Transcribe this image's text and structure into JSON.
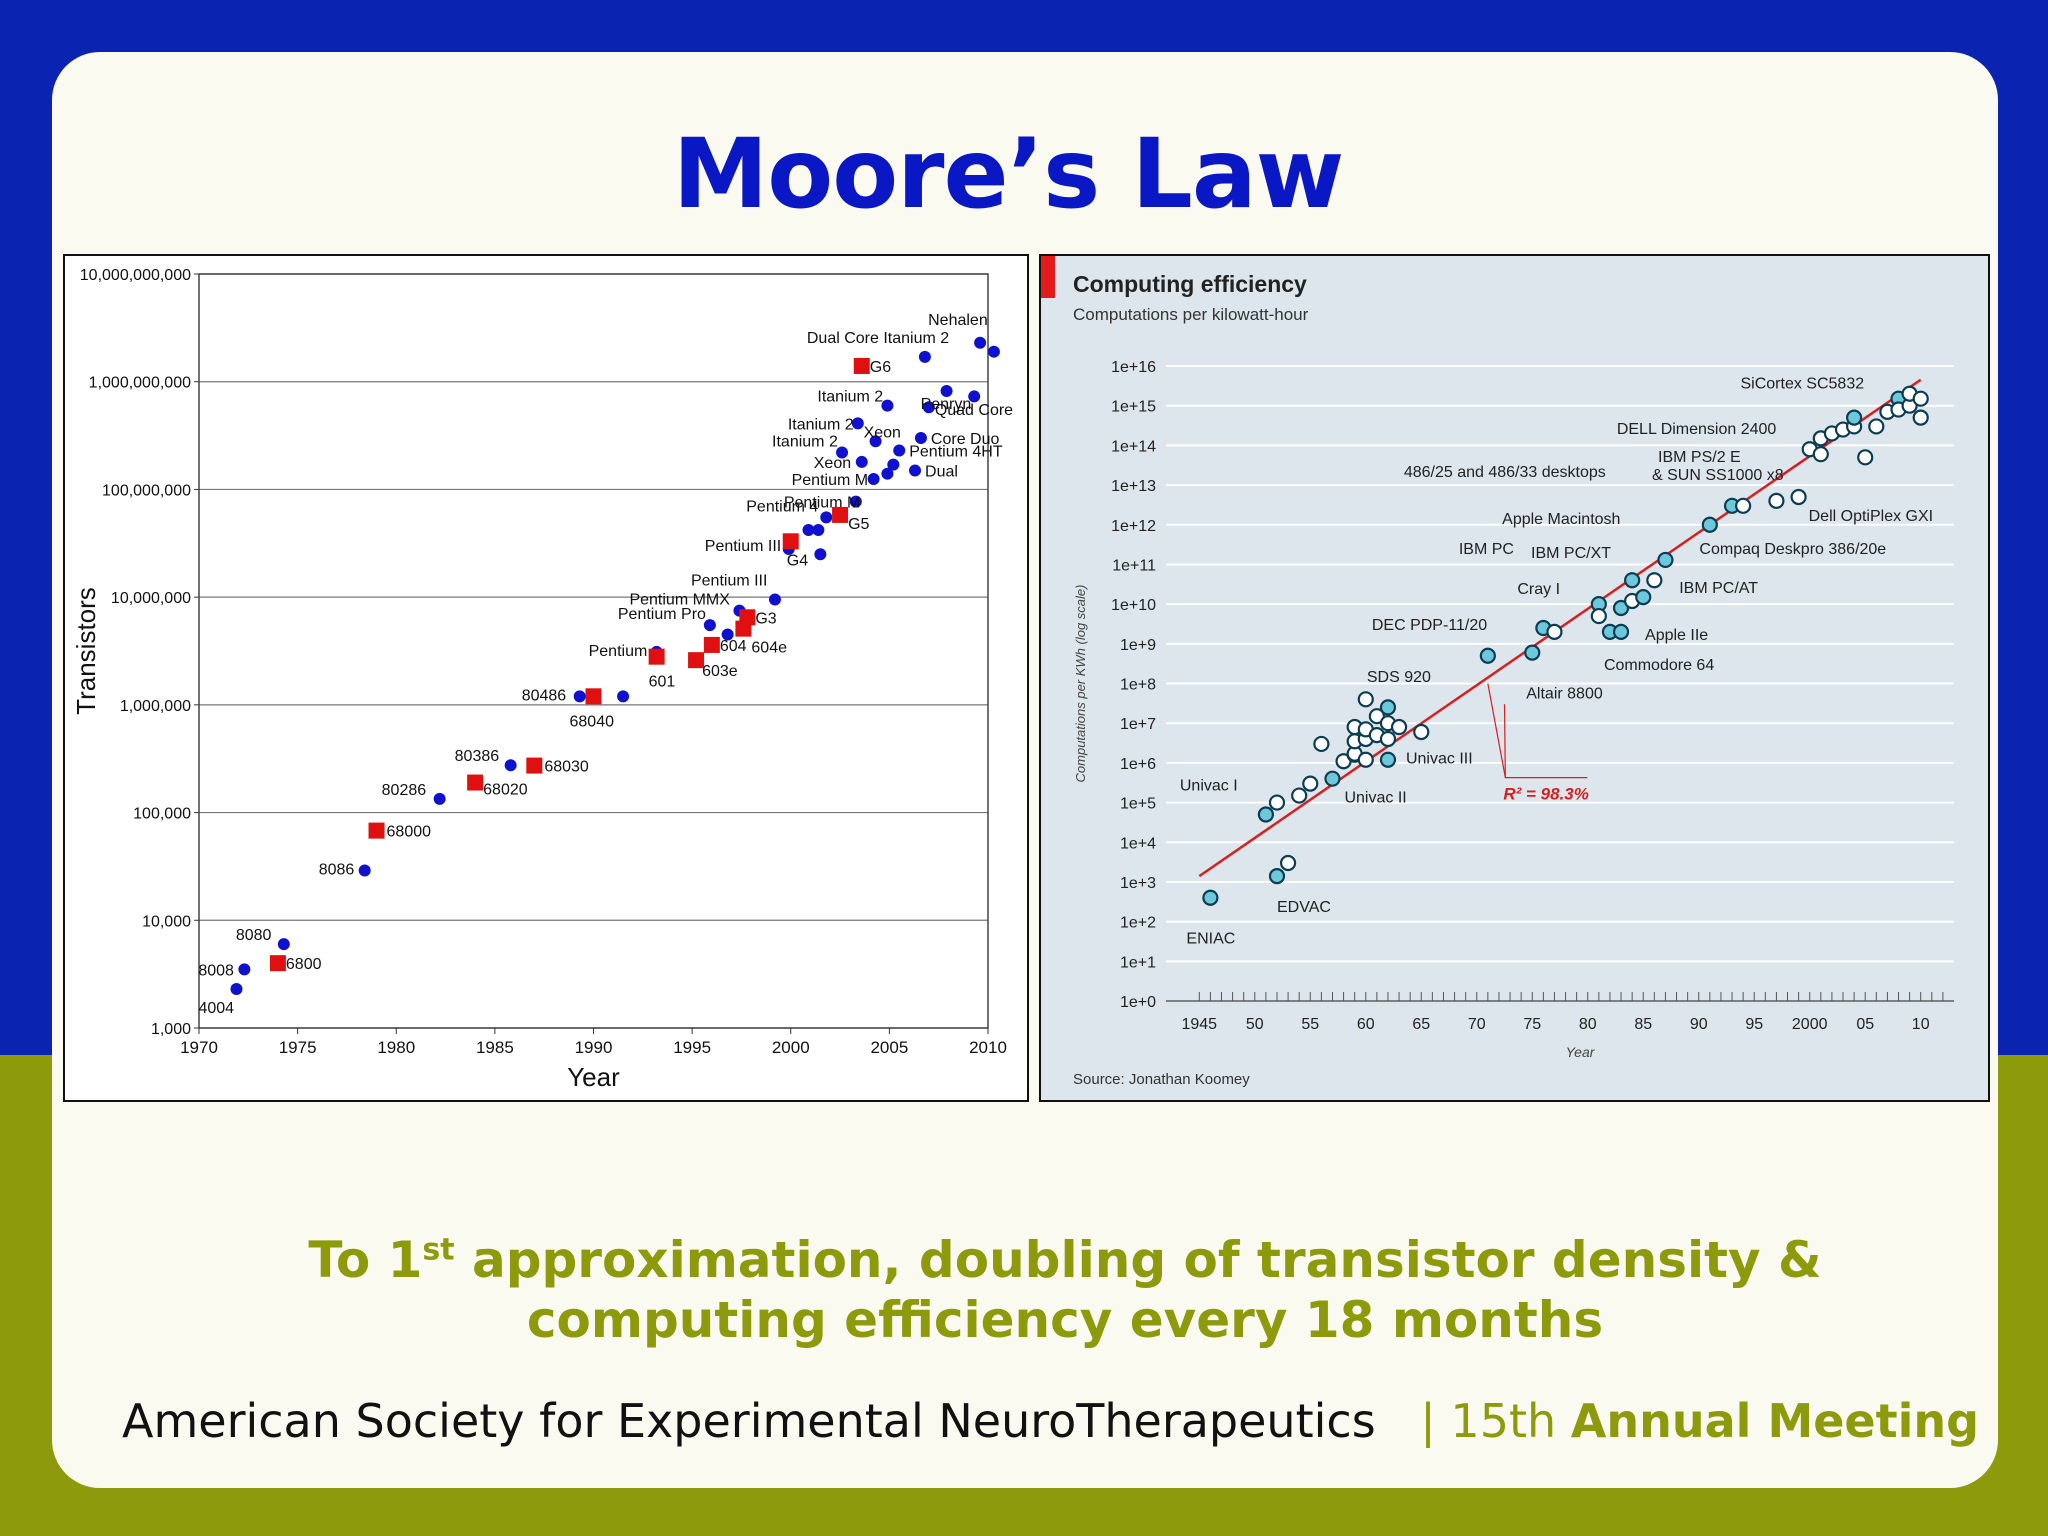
{
  "slide": {
    "title": "Moore’s Law",
    "subtitle_part1": "To 1",
    "subtitle_sup": "st",
    "subtitle_part2": " approximation, doubling of transistor density &",
    "subtitle_line2": "computing efficiency every 18 months",
    "footer_org": "American Society for Experimental NeuroTherapeutics",
    "footer_sep": "|",
    "footer_edition": "15th",
    "footer_meeting": "Annual Meeting"
  },
  "colors": {
    "brand_blue": "#0a17c4",
    "band_blue": "#0a23b0",
    "band_olive": "#8c9a0c",
    "intel_blue": "#1010d0",
    "motorola_red": "#e01010",
    "fit_line": "#d81e1e",
    "efficiency_point": "#6ec8dc"
  },
  "chart_data": [
    {
      "type": "scatter",
      "xlabel": "Year",
      "ylabel": "Transistors",
      "scale_y": "log",
      "xlim": [
        1970,
        2010
      ],
      "ylim": [
        1000,
        10000000000
      ],
      "x_ticks": [
        "1970",
        "1975",
        "1980",
        "1985",
        "1990",
        "1995",
        "2000",
        "2005",
        "2010"
      ],
      "y_ticks": [
        "1,000",
        "10,000",
        "100,000",
        "1,000,000",
        "10,000,000",
        "100,000,000",
        "1,000,000,000",
        "10,000,000,000"
      ],
      "grid": "horizontal",
      "series": [
        {
          "marker": "circle",
          "color": "#1010d0",
          "points": [
            {
              "x": 1971.9,
              "y": 2300,
              "label": "4004"
            },
            {
              "x": 1972.3,
              "y": 3500,
              "label": "8008"
            },
            {
              "x": 1974.3,
              "y": 6000,
              "label": "8080"
            },
            {
              "x": 1978.4,
              "y": 29000,
              "label": "8086"
            },
            {
              "x": 1982.2,
              "y": 134000,
              "label": "80286"
            },
            {
              "x": 1985.8,
              "y": 275000,
              "label": "80386"
            },
            {
              "x": 1989.3,
              "y": 1200000,
              "label": "80486"
            },
            {
              "x": 1991.5,
              "y": 1200000,
              "label": ""
            },
            {
              "x": 1993.2,
              "y": 3100000,
              "label": "Pentium"
            },
            {
              "x": 1995.9,
              "y": 5500000,
              "label": "Pentium Pro"
            },
            {
              "x": 1996.8,
              "y": 4500000,
              "label": ""
            },
            {
              "x": 1997.4,
              "y": 7500000,
              "label": "Pentium MMX"
            },
            {
              "x": 1999.2,
              "y": 9500000,
              "label": "Pentium III"
            },
            {
              "x": 1999.9,
              "y": 28000000,
              "label": "Pentium III"
            },
            {
              "x": 2000.9,
              "y": 42000000,
              "label": ""
            },
            {
              "x": 2001.4,
              "y": 42000000,
              "label": ""
            },
            {
              "x": 2001.5,
              "y": 25000000,
              "label": ""
            },
            {
              "x": 2001.8,
              "y": 55000000,
              "label": "Pentium 4"
            },
            {
              "x": 2002.6,
              "y": 220000000,
              "label": "Itanium 2"
            },
            {
              "x": 2003.4,
              "y": 410000000,
              "label": "Itanium 2"
            },
            {
              "x": 2003.6,
              "y": 180000000,
              "label": "Xeon"
            },
            {
              "x": 2003.3,
              "y": 77000000,
              "label": "Pentium M"
            },
            {
              "x": 2004.2,
              "y": 125000000,
              "label": "Pentium M"
            },
            {
              "x": 2004.3,
              "y": 280000000,
              "label": "Xeon"
            },
            {
              "x": 2004.9,
              "y": 600000000,
              "label": "Itanium 2"
            },
            {
              "x": 2004.9,
              "y": 140000000,
              "label": ""
            },
            {
              "x": 2005.2,
              "y": 170000000,
              "label": ""
            },
            {
              "x": 2005.5,
              "y": 230000000,
              "label": "Pentium 4HT"
            },
            {
              "x": 2006.3,
              "y": 150000000,
              "label": "Dual"
            },
            {
              "x": 2006.6,
              "y": 300000000,
              "label": "Core Duo"
            },
            {
              "x": 2006.8,
              "y": 1700000000,
              "label": "Dual Core Itanium 2"
            },
            {
              "x": 2007.0,
              "y": 580000000,
              "label": "Quad Core"
            },
            {
              "x": 2007.9,
              "y": 820000000,
              "label": "Penryn"
            },
            {
              "x": 2009.3,
              "y": 730000000,
              "label": ""
            },
            {
              "x": 2009.6,
              "y": 2300000000,
              "label": "Nehalen"
            },
            {
              "x": 2010.3,
              "y": 1900000000,
              "label": ""
            }
          ]
        },
        {
          "marker": "square",
          "color": "#e01010",
          "points": [
            {
              "x": 1974.0,
              "y": 4000,
              "label": "6800"
            },
            {
              "x": 1979.0,
              "y": 68000,
              "label": "68000"
            },
            {
              "x": 1984.0,
              "y": 190000,
              "label": "68020"
            },
            {
              "x": 1987.0,
              "y": 273000,
              "label": "68030"
            },
            {
              "x": 1990.0,
              "y": 1200000,
              "label": "68040"
            },
            {
              "x": 1993.2,
              "y": 2800000,
              "label": "601"
            },
            {
              "x": 1995.2,
              "y": 2600000,
              "label": "603e"
            },
            {
              "x": 1996.0,
              "y": 3600000,
              "label": "604"
            },
            {
              "x": 1997.6,
              "y": 5100000,
              "label": "604e"
            },
            {
              "x": 1997.8,
              "y": 6500000,
              "label": "G3"
            },
            {
              "x": 2000.0,
              "y": 33000000,
              "label": "G4"
            },
            {
              "x": 2002.5,
              "y": 58000000,
              "label": "G5"
            },
            {
              "x": 2003.6,
              "y": 1400000000,
              "label": "G6"
            }
          ]
        }
      ]
    },
    {
      "type": "scatter",
      "title": "Computing efficiency",
      "subtitle": "Computations per kilowatt-hour",
      "xlabel": "Year",
      "ylabel": "Computations per KWh (log scale)",
      "scale_y": "log",
      "xlim": [
        1942,
        2013
      ],
      "ylim": [
        1,
        1e+16
      ],
      "x_ticks": [
        "1945",
        "50",
        "55",
        "60",
        "65",
        "70",
        "75",
        "80",
        "85",
        "90",
        "95",
        "2000",
        "05",
        "10"
      ],
      "y_ticks": [
        "1e+0",
        "1e+1",
        "1e+2",
        "1e+3",
        "1e+4",
        "1e+5",
        "1e+6",
        "1e+7",
        "1e+8",
        "1e+9",
        "1e+10",
        "1e+11",
        "1e+12",
        "1e+13",
        "1e+14",
        "1e+15",
        "1e+16"
      ],
      "grid": "horizontal",
      "source": "Source: Jonathan Koomey",
      "fit": {
        "x": [
          1945,
          2010
        ],
        "y": [
          1400.0,
          4500000000000000.0
        ],
        "label": "R² = 98.3%"
      },
      "points": [
        {
          "x": 1946.0,
          "y": 400,
          "label": "ENIAC",
          "filled": true
        },
        {
          "x": 1951.0,
          "y": 50000,
          "label": "Univac I",
          "filled": true
        },
        {
          "x": 1952.0,
          "y": 1400,
          "label": "EDVAC",
          "filled": true
        },
        {
          "x": 1952.0,
          "y": 100000,
          "filled": false
        },
        {
          "x": 1953.0,
          "y": 3000,
          "filled": false
        },
        {
          "x": 1954.0,
          "y": 150000,
          "filled": false
        },
        {
          "x": 1955.0,
          "y": 300000,
          "filled": false
        },
        {
          "x": 1956.0,
          "y": 3000000,
          "filled": false
        },
        {
          "x": 1957.0,
          "y": 400000,
          "label": "Univac II",
          "filled": true
        },
        {
          "x": 1958.0,
          "y": 1100000,
          "filled": false
        },
        {
          "x": 1959.0,
          "y": 1600000,
          "filled": false
        },
        {
          "x": 1959.0,
          "y": 1700000,
          "filled": false
        },
        {
          "x": 1959.0,
          "y": 3500000,
          "filled": false
        },
        {
          "x": 1959.0,
          "y": 8000000,
          "filled": false
        },
        {
          "x": 1960.0,
          "y": 1200000,
          "filled": false
        },
        {
          "x": 1960.0,
          "y": 4000000,
          "filled": false
        },
        {
          "x": 1960.0,
          "y": 7000000,
          "filled": false
        },
        {
          "x": 1960.0,
          "y": 40000000,
          "filled": false
        },
        {
          "x": 1961.0,
          "y": 5000000,
          "filled": false
        },
        {
          "x": 1961.0,
          "y": 15000000,
          "label": "SDS 920",
          "filled": false
        },
        {
          "x": 1962.0,
          "y": 25000000,
          "filled": true
        },
        {
          "x": 1962.0,
          "y": 10000000,
          "filled": false
        },
        {
          "x": 1962.0,
          "y": 4000000,
          "filled": false
        },
        {
          "x": 1962.0,
          "y": 1200000,
          "label": "Univac III",
          "filled": true
        },
        {
          "x": 1963.0,
          "y": 8000000,
          "filled": false
        },
        {
          "x": 1965.0,
          "y": 6000000,
          "filled": false
        },
        {
          "x": 1971.0,
          "y": 500000000,
          "label": "DEC PDP-11/20",
          "filled": true
        },
        {
          "x": 1975.0,
          "y": 600000000,
          "label": "Altair 8800",
          "filled": true
        },
        {
          "x": 1976.0,
          "y": 2500000000,
          "label": "Cray I",
          "filled": true
        },
        {
          "x": 1977.0,
          "y": 2000000000,
          "filled": false
        },
        {
          "x": 1981.0,
          "y": 10000000000,
          "label": "IBM PC",
          "filled": true
        },
        {
          "x": 1981.0,
          "y": 5000000000,
          "filled": false
        },
        {
          "x": 1982.0,
          "y": 2000000000,
          "label": "Commodore 64",
          "filled": true
        },
        {
          "x": 1983.0,
          "y": 8000000000,
          "label": "IBM PC/XT",
          "filled": true
        },
        {
          "x": 1983.0,
          "y": 2000000000,
          "label": "Apple IIe",
          "filled": true
        },
        {
          "x": 1984.0,
          "y": 40000000000,
          "label": "Apple Macintosh",
          "filled": true
        },
        {
          "x": 1984.0,
          "y": 12000000000,
          "filled": false
        },
        {
          "x": 1985.0,
          "y": 15000000000,
          "label": "IBM PC/AT",
          "filled": true
        },
        {
          "x": 1986.0,
          "y": 40000000000,
          "filled": false
        },
        {
          "x": 1987.0,
          "y": 130000000000,
          "label": "Compaq Deskpro 386/20e",
          "filled": true
        },
        {
          "x": 1991.0,
          "y": 1000000000000,
          "label": "486/25 and 486/33 desktops",
          "filled": true
        },
        {
          "x": 1993.0,
          "y": 3000000000000,
          "label": "IBM PS/2 E & SUN SS1000 x8",
          "filled": true
        },
        {
          "x": 1994.0,
          "y": 3000000000000,
          "filled": false
        },
        {
          "x": 1997.0,
          "y": 4000000000000,
          "filled": false
        },
        {
          "x": 1999.0,
          "y": 5000000000000,
          "label": "Dell OptiPlex GXI",
          "filled": false
        },
        {
          "x": 2000.0,
          "y": 80000000000000,
          "filled": false
        },
        {
          "x": 2001.0,
          "y": 150000000000000,
          "filled": false
        },
        {
          "x": 2001.0,
          "y": 60000000000000,
          "label": "DELL Dimension 2400",
          "filled": false
        },
        {
          "x": 2002.0,
          "y": 200000000000000,
          "filled": false
        },
        {
          "x": 2003.0,
          "y": 250000000000000,
          "filled": false
        },
        {
          "x": 2004.0,
          "y": 300000000000000,
          "filled": false
        },
        {
          "x": 2004.0,
          "y": 500000000000000,
          "filled": true
        },
        {
          "x": 2005.0,
          "y": 50000000000000,
          "filled": false
        },
        {
          "x": 2006.0,
          "y": 300000000000000,
          "filled": false
        },
        {
          "x": 2007.0,
          "y": 700000000000000,
          "filled": false
        },
        {
          "x": 2008.0,
          "y": 1500000000000000,
          "label": "SiCortex SC5832",
          "filled": true
        },
        {
          "x": 2008.0,
          "y": 800000000000000,
          "filled": false
        },
        {
          "x": 2009.0,
          "y": 1000000000000000,
          "filled": false
        },
        {
          "x": 2009.0,
          "y": 2000000000000000,
          "filled": false
        },
        {
          "x": 2010.0,
          "y": 1500000000000000,
          "filled": false
        },
        {
          "x": 2010.0,
          "y": 500000000000000,
          "filled": false
        }
      ]
    }
  ]
}
